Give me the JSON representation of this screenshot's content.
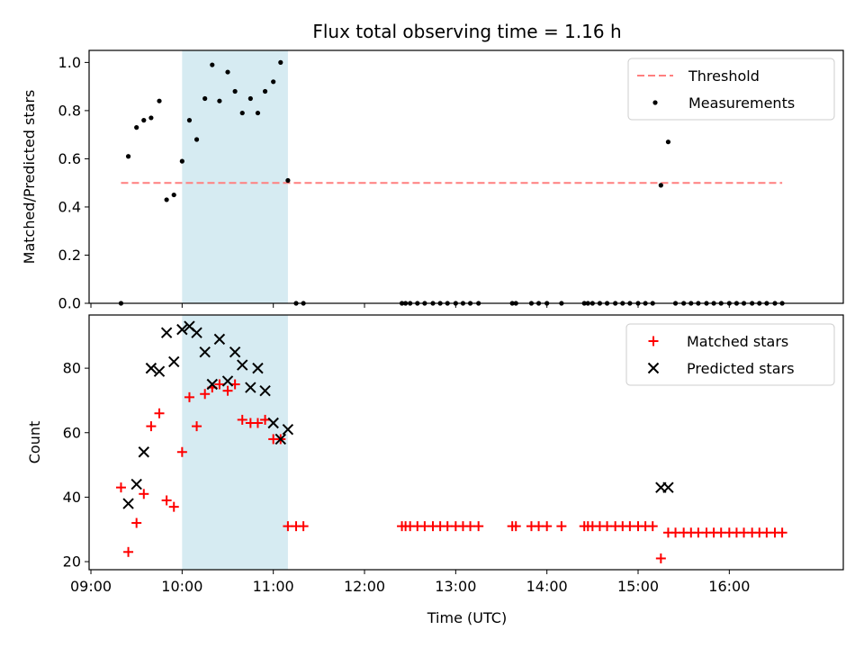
{
  "chart_data": {
    "title": "Flux total observing time = 1.16 h",
    "x_axis": {
      "label": "Time (UTC)",
      "unit": "hours UTC",
      "range": [
        8.98,
        17.25
      ],
      "ticks": [
        9,
        10,
        11,
        12,
        13,
        14,
        15,
        16
      ],
      "tick_labels": [
        "09:00",
        "10:00",
        "11:00",
        "12:00",
        "13:00",
        "14:00",
        "15:00",
        "16:00"
      ]
    },
    "highlight_span": {
      "x0": 10.0,
      "x1": 11.16,
      "color": "#add8e6"
    },
    "colors": {
      "threshold": "#ff7f7f",
      "measurements": "#000000",
      "matched": "#ff0000",
      "predicted": "#000000"
    },
    "panels": [
      {
        "type": "scatter",
        "ylabel": "Matched/Predicted stars",
        "ylim": [
          0,
          1.05
        ],
        "yticks": [
          0.0,
          0.2,
          0.4,
          0.6,
          0.8,
          1.0
        ],
        "ytick_labels": [
          "0.0",
          "0.2",
          "0.4",
          "0.6",
          "0.8",
          "1.0"
        ],
        "legend_position": "top-right",
        "threshold": {
          "name": "Threshold",
          "y": 0.5,
          "x": [
            9.33,
            16.58
          ]
        },
        "series": [
          {
            "name": "Measurements",
            "x": [
              9.33,
              9.41,
              9.5,
              9.58,
              9.66,
              9.75,
              9.83,
              9.91,
              10.0,
              10.08,
              10.16,
              10.25,
              10.33,
              10.41,
              10.5,
              10.58,
              10.66,
              10.75,
              10.83,
              10.91,
              11.0,
              11.08,
              11.16,
              11.25,
              11.33,
              12.41,
              12.45,
              12.5,
              12.58,
              12.66,
              12.75,
              12.83,
              12.91,
              13.0,
              13.08,
              13.16,
              13.25,
              13.62,
              13.66,
              13.83,
              13.91,
              14.0,
              14.16,
              14.41,
              14.45,
              14.5,
              14.58,
              14.66,
              14.75,
              14.83,
              14.91,
              15.0,
              15.08,
              15.16,
              15.25,
              15.33,
              15.41,
              15.5,
              15.58,
              15.66,
              15.75,
              15.83,
              15.91,
              16.0,
              16.08,
              16.16,
              16.25,
              16.33,
              16.41,
              16.5,
              16.58
            ],
            "y": [
              0.0,
              0.61,
              0.73,
              0.76,
              0.77,
              0.84,
              0.43,
              0.45,
              0.59,
              0.76,
              0.68,
              0.85,
              0.99,
              0.84,
              0.96,
              0.88,
              0.79,
              0.85,
              0.79,
              0.88,
              0.92,
              1.0,
              0.51,
              0.0,
              0.0,
              0.0,
              0.0,
              0.0,
              0.0,
              0.0,
              0.0,
              0.0,
              0.0,
              0.0,
              0.0,
              0.0,
              0.0,
              0.0,
              0.0,
              0.0,
              0.0,
              0.0,
              0.0,
              0.0,
              0.0,
              0.0,
              0.0,
              0.0,
              0.0,
              0.0,
              0.0,
              0.0,
              0.0,
              0.0,
              0.49,
              0.67,
              0.0,
              0.0,
              0.0,
              0.0,
              0.0,
              0.0,
              0.0,
              0.0,
              0.0,
              0.0,
              0.0,
              0.0,
              0.0,
              0.0,
              0.0
            ]
          }
        ]
      },
      {
        "type": "scatter",
        "ylabel": "Count",
        "ylim": [
          17.5,
          96.5
        ],
        "yticks": [
          20,
          40,
          60,
          80
        ],
        "ytick_labels": [
          "20",
          "40",
          "60",
          "80"
        ],
        "legend_position": "top-right",
        "series": [
          {
            "name": "Matched stars",
            "marker": "plus",
            "x": [
              9.33,
              9.41,
              9.5,
              9.58,
              9.66,
              9.75,
              9.83,
              9.91,
              10.0,
              10.08,
              10.16,
              10.25,
              10.33,
              10.41,
              10.5,
              10.58,
              10.66,
              10.75,
              10.83,
              10.91,
              11.0,
              11.08,
              11.16,
              11.25,
              11.33,
              12.41,
              12.45,
              12.5,
              12.58,
              12.66,
              12.75,
              12.83,
              12.91,
              13.0,
              13.08,
              13.16,
              13.25,
              13.62,
              13.66,
              13.83,
              13.91,
              14.0,
              14.16,
              14.41,
              14.45,
              14.5,
              14.58,
              14.66,
              14.75,
              14.83,
              14.91,
              15.0,
              15.08,
              15.16,
              15.25,
              15.33,
              15.41,
              15.5,
              15.58,
              15.66,
              15.75,
              15.83,
              15.91,
              16.0,
              16.08,
              16.16,
              16.25,
              16.33,
              16.41,
              16.5,
              16.58
            ],
            "y": [
              43,
              23,
              32,
              41,
              62,
              66,
              39,
              37,
              54,
              71,
              62,
              72,
              74,
              75,
              73,
              75,
              64,
              63,
              63,
              64,
              58,
              58,
              31,
              31,
              31,
              31,
              31,
              31,
              31,
              31,
              31,
              31,
              31,
              31,
              31,
              31,
              31,
              31,
              31,
              31,
              31,
              31,
              31,
              31,
              31,
              31,
              31,
              31,
              31,
              31,
              31,
              31,
              31,
              31,
              21,
              29,
              29,
              29,
              29,
              29,
              29,
              29,
              29,
              29,
              29,
              29,
              29,
              29,
              29,
              29,
              29
            ]
          },
          {
            "name": "Predicted stars",
            "marker": "x",
            "x": [
              9.41,
              9.5,
              9.58,
              9.66,
              9.75,
              9.83,
              9.91,
              10.0,
              10.08,
              10.16,
              10.25,
              10.33,
              10.41,
              10.5,
              10.58,
              10.66,
              10.75,
              10.83,
              10.91,
              11.0,
              11.08,
              11.16,
              15.25,
              15.33
            ],
            "y": [
              38,
              44,
              54,
              80,
              79,
              91,
              82,
              92,
              93,
              91,
              85,
              75,
              89,
              76,
              85,
              81,
              74,
              80,
              73,
              63,
              58,
              61,
              43,
              43
            ]
          }
        ]
      }
    ]
  }
}
